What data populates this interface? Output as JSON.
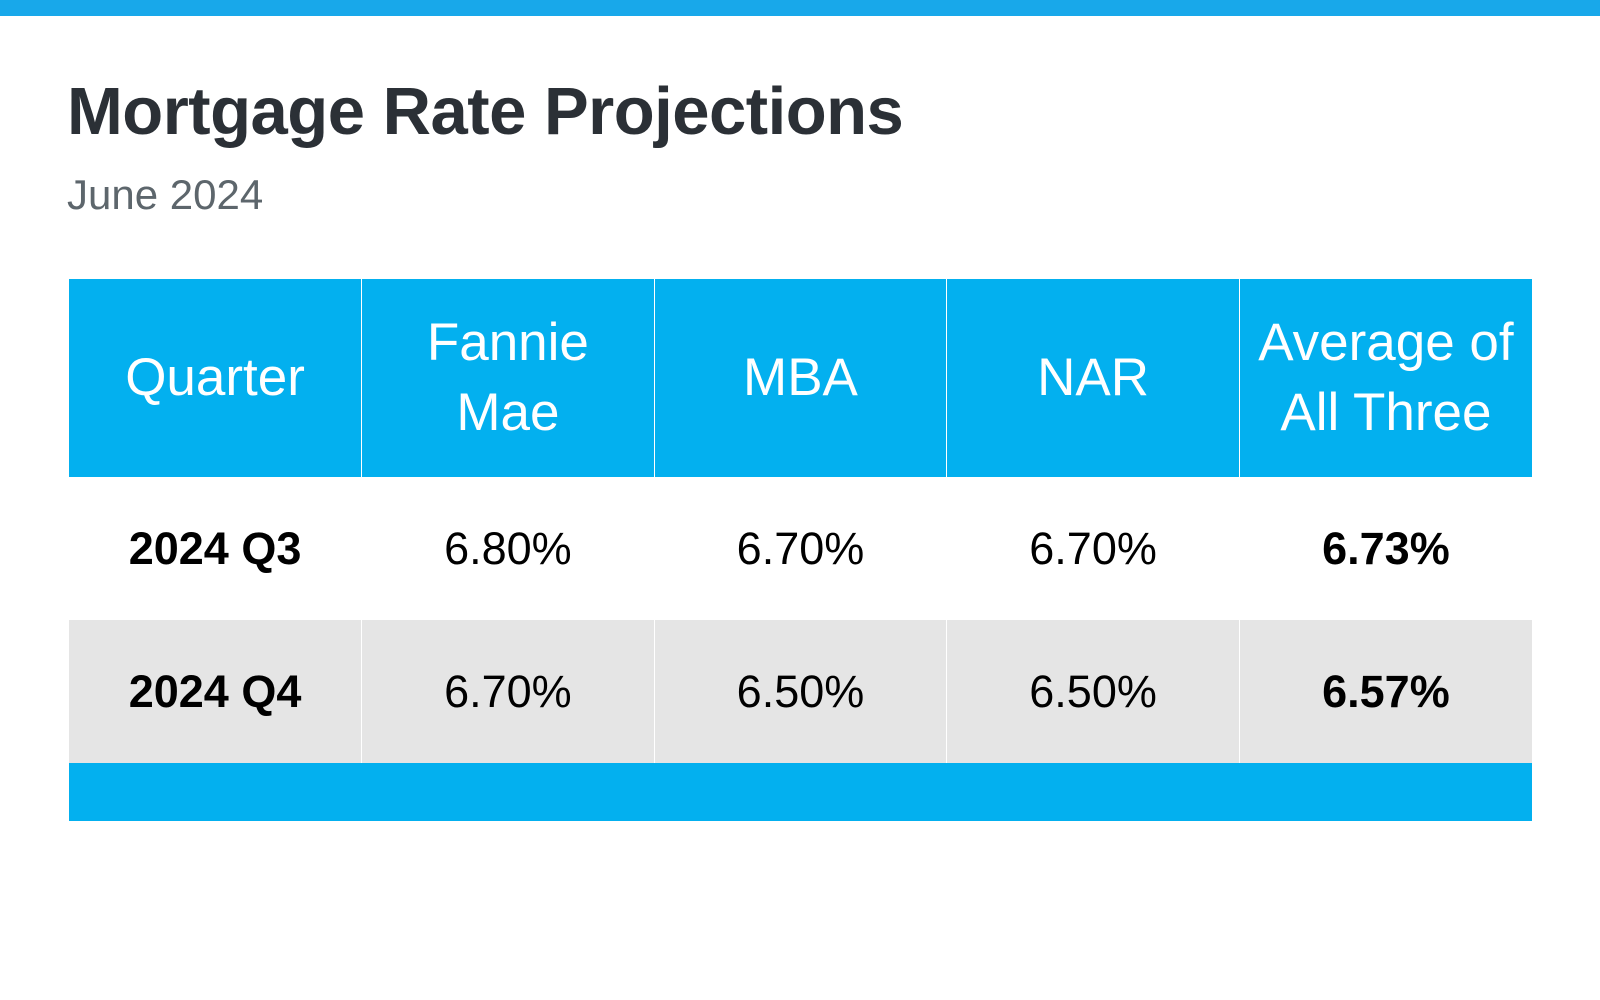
{
  "header": {
    "title": "Mortgage Rate Projections",
    "subtitle": "June 2024"
  },
  "colors": {
    "accent": "#03b0ef",
    "top_bar": "#18a8ea",
    "title_text": "#2b3036",
    "subtitle_text": "#5d666c",
    "alt_row": "#e5e5e5"
  },
  "chart_data": {
    "type": "table",
    "title": "Mortgage Rate Projections",
    "subtitle": "June 2024",
    "columns": [
      {
        "line1": "Quarter",
        "line2": ""
      },
      {
        "line1": "Fannie",
        "line2": "Mae"
      },
      {
        "line1": "MBA",
        "line2": ""
      },
      {
        "line1": "NAR",
        "line2": ""
      },
      {
        "line1": "Average of",
        "line2": "All Three"
      }
    ],
    "rows": [
      {
        "quarter": "2024 Q3",
        "fannie_mae": "6.80%",
        "mba": "6.70%",
        "nar": "6.70%",
        "average": "6.73%"
      },
      {
        "quarter": "2024 Q4",
        "fannie_mae": "6.70%",
        "mba": "6.50%",
        "nar": "6.50%",
        "average": "6.57%"
      }
    ]
  }
}
